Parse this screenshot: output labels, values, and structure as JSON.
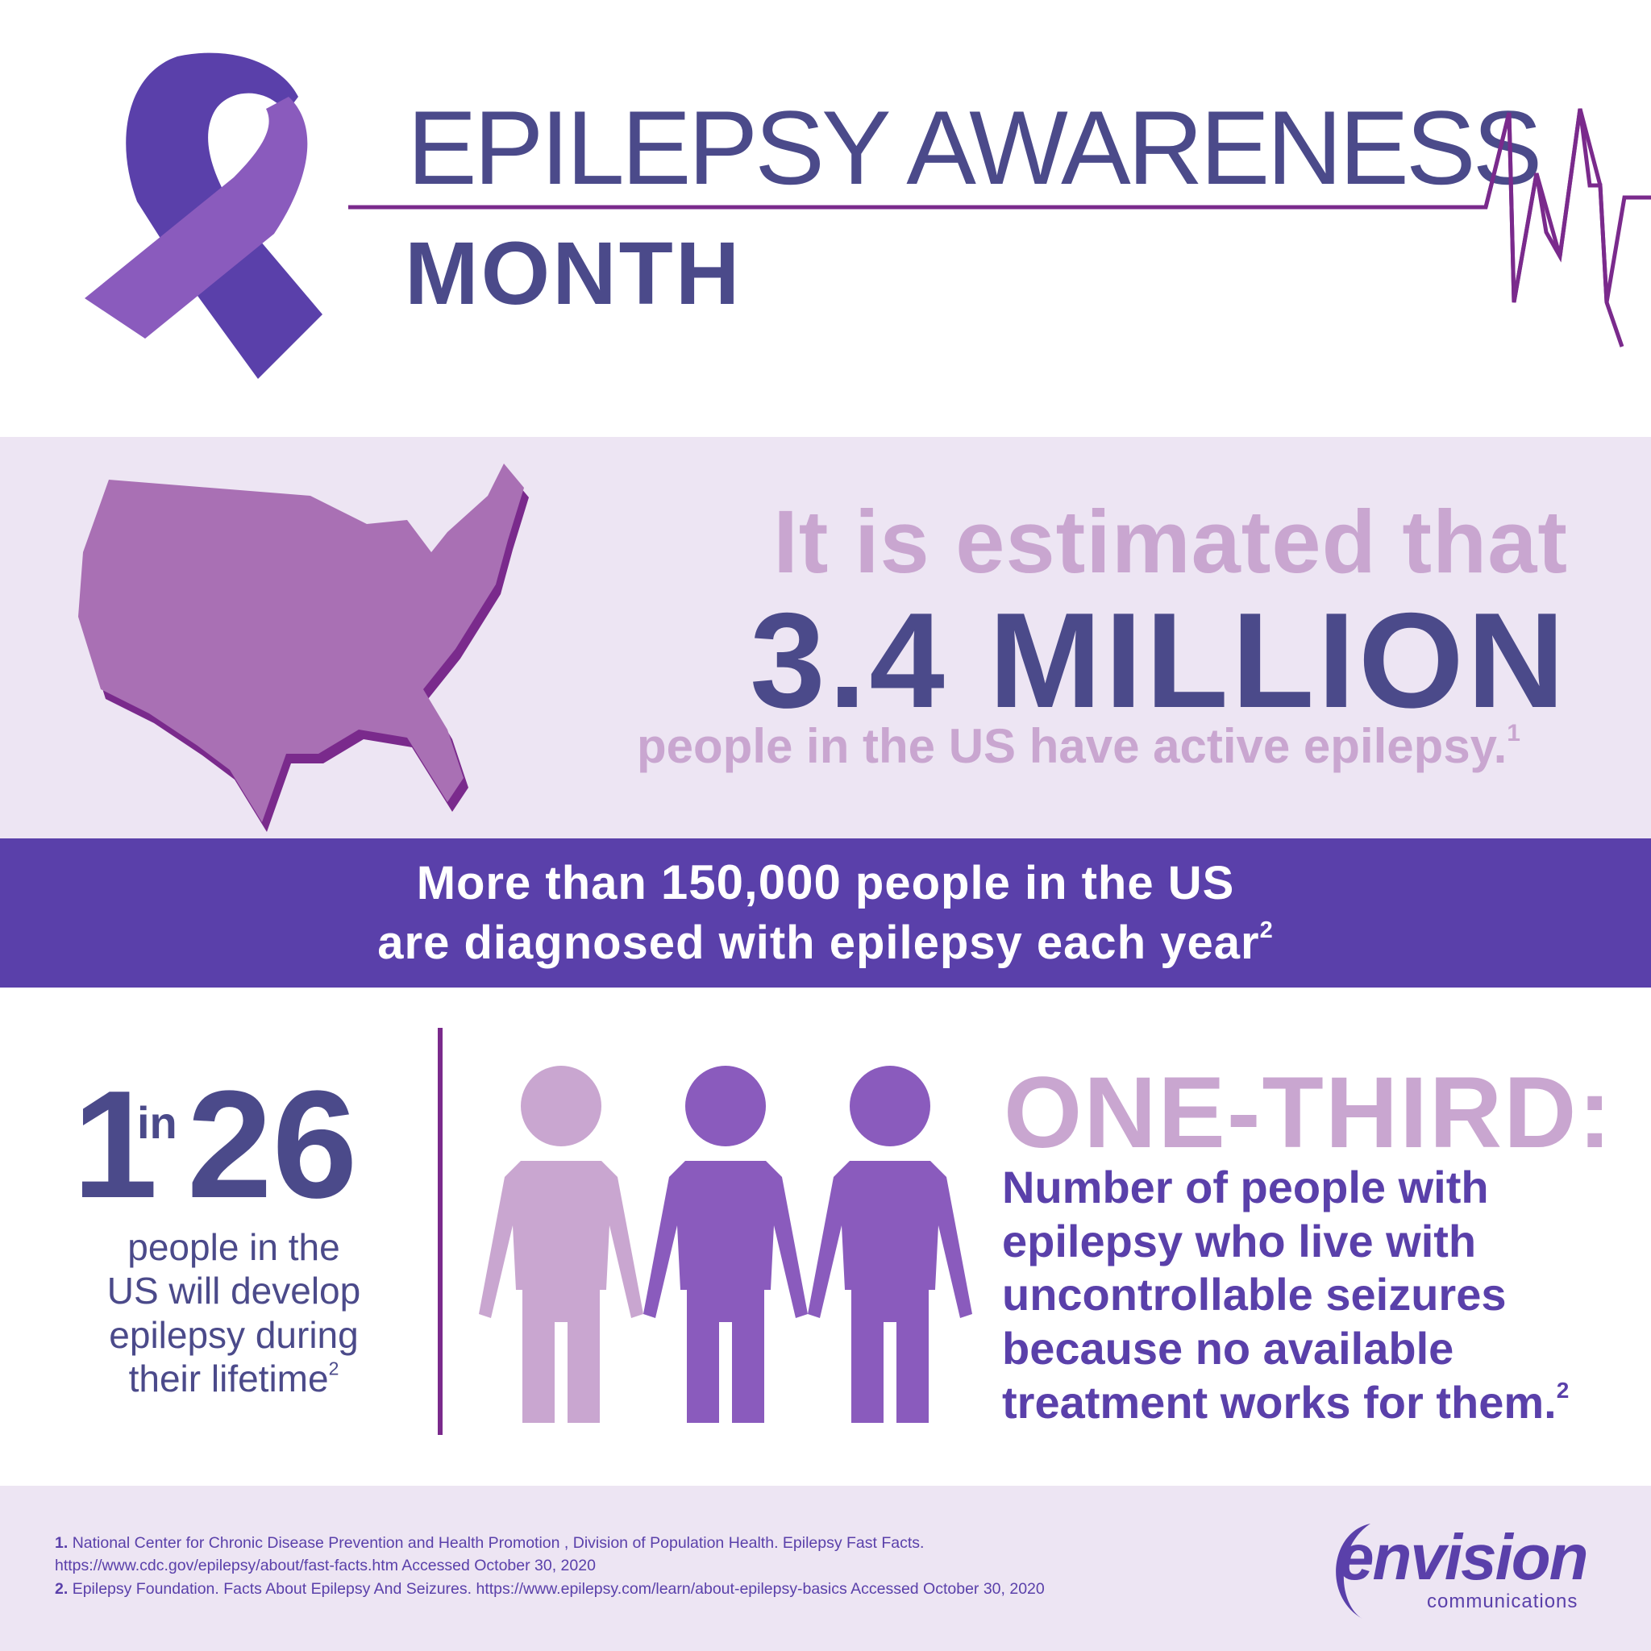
{
  "header": {
    "title_line1": "EPILEPSY AWARENESS",
    "title_line2": "MONTH"
  },
  "icons": [
    "awareness-ribbon",
    "heartbeat-line",
    "us-map",
    "people-figures",
    "envision-logo"
  ],
  "colors": {
    "dark_purple": "#4b4a8a",
    "royal_purple": "#5a40aa",
    "light_lilac": "#c9a6d0",
    "band_background": "#ede5f3",
    "map_purple": "#a970b4"
  },
  "stat_estimate": {
    "lead": "It is estimated that",
    "value": "3.4 MILLION",
    "tail": "people in the US have active epilepsy.",
    "note": "1"
  },
  "stat_annual": {
    "line1_prefix": "More than ",
    "line1_value": "150,000",
    "line1_suffix": " people in the US",
    "line2": "are diagnosed with epilepsy each year",
    "note": "2"
  },
  "stat_ratio": {
    "one": "1",
    "in": "in",
    "number": "26",
    "caption_lines": [
      "people in the",
      "US will develop",
      "epilepsy during",
      "their lifetime"
    ],
    "note": "2"
  },
  "stat_third": {
    "title": "ONE-THIRD:",
    "text_lines": [
      "Number of people with",
      "epilepsy who live with",
      "uncontrollable seizures",
      "because no available",
      "treatment works for them."
    ],
    "note": "2"
  },
  "references": [
    {
      "num": "1.",
      "text": "National Center for Chronic Disease Prevention and Health Promotion , Division of Population Health. Epilepsy Fast Facts.",
      "text2": "https://www.cdc.gov/epilepsy/about/fast-facts.htm Accessed October 30, 2020"
    },
    {
      "num": "2.",
      "text": "Epilepsy Foundation. Facts About Epilepsy And Seizures. https://www.epilepsy.com/learn/about-epilepsy-basics  Accessed October 30, 2020"
    }
  ],
  "logo": {
    "word": "envision",
    "sub": "communications"
  }
}
